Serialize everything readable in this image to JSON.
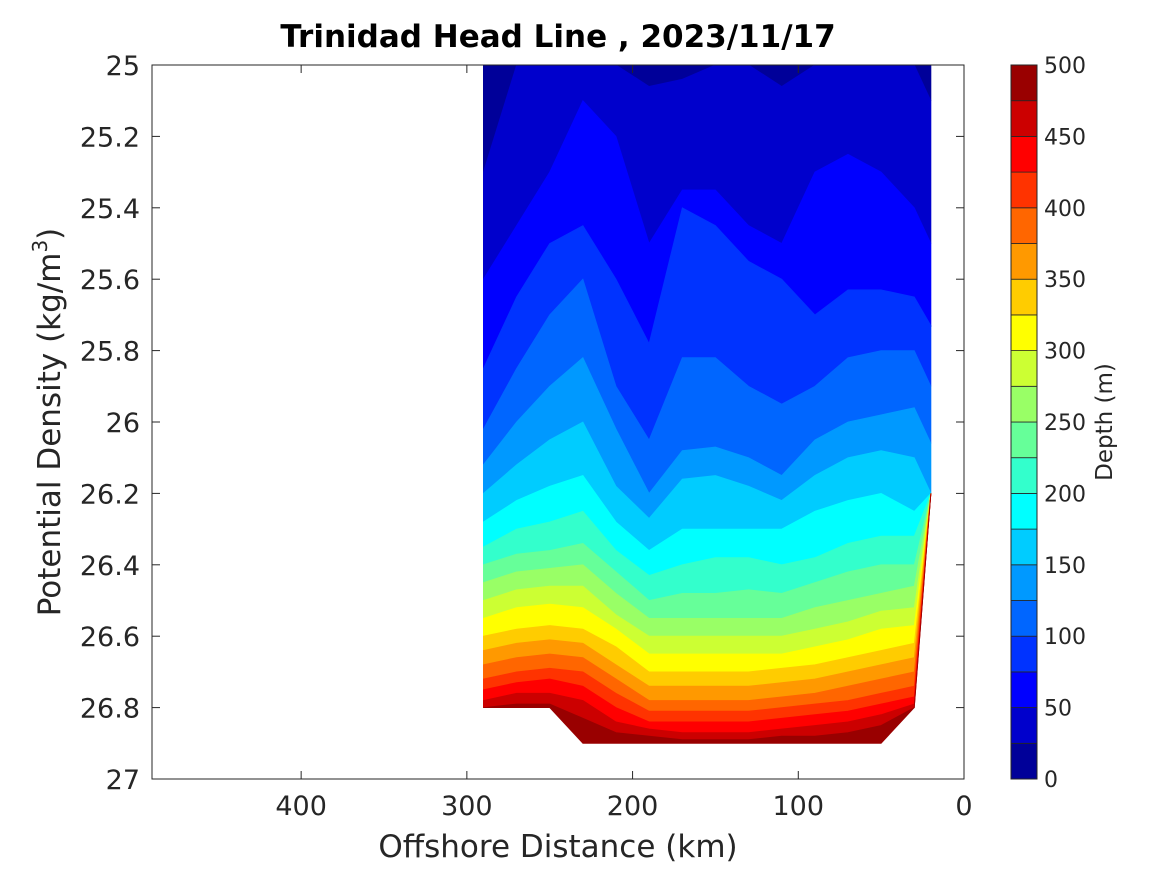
{
  "chart_data": {
    "type": "contour",
    "title": "Trinidad Head Line , 2023/11/17",
    "xlabel": "Offshore Distance (km)",
    "ylabel": "Potential Density (kg/m",
    "ylabel_superscript": "3",
    "ylabel_suffix": ")",
    "xlim": [
      490,
      0
    ],
    "ylim": [
      25,
      27
    ],
    "y_reversed": true,
    "x_reversed": true,
    "x_ticks": [
      "400",
      "300",
      "200",
      "100",
      "0"
    ],
    "x_tick_values": [
      400,
      300,
      200,
      100,
      0
    ],
    "y_ticks": [
      "25",
      "25.2",
      "25.4",
      "25.6",
      "25.8",
      "26",
      "26.2",
      "26.4",
      "26.6",
      "26.8",
      "27"
    ],
    "y_tick_values": [
      25,
      25.2,
      25.4,
      25.6,
      25.8,
      26,
      26.2,
      26.4,
      26.6,
      26.8,
      27
    ],
    "colorbar": {
      "label": "Depth (m)",
      "range": [
        0,
        500
      ],
      "step": 25,
      "tick_labels": [
        "0",
        "50",
        "100",
        "150",
        "200",
        "250",
        "300",
        "350",
        "400",
        "450",
        "500"
      ],
      "tick_values": [
        0,
        50,
        100,
        150,
        200,
        250,
        300,
        350,
        400,
        450,
        500
      ],
      "colormap": "jet"
    },
    "stations_km": [
      290,
      270,
      250,
      230,
      210,
      190,
      170,
      150,
      130,
      110,
      90,
      70,
      50,
      30,
      20
    ],
    "data_bottom_density": [
      26.8,
      26.8,
      26.8,
      26.9,
      26.9,
      26.9,
      26.9,
      26.9,
      26.9,
      26.9,
      26.9,
      26.9,
      26.9,
      26.8,
      26.2
    ],
    "depth_contours": [
      {
        "depth_m": 25,
        "density": [
          25.3,
          25.0,
          25.0,
          25.0,
          25.0,
          25.06,
          25.04,
          25.0,
          25.0,
          25.06,
          25.0,
          25.0,
          25.0,
          25.0,
          25.1
        ]
      },
      {
        "depth_m": 50,
        "density": [
          25.6,
          25.45,
          25.3,
          25.1,
          25.2,
          25.5,
          25.35,
          25.35,
          25.45,
          25.5,
          25.3,
          25.25,
          25.3,
          25.4,
          25.5
        ]
      },
      {
        "depth_m": 75,
        "density": [
          25.85,
          25.65,
          25.5,
          25.45,
          25.6,
          25.78,
          25.4,
          25.45,
          25.55,
          25.6,
          25.7,
          25.63,
          25.63,
          25.65,
          25.73
        ]
      },
      {
        "depth_m": 100,
        "density": [
          26.02,
          25.85,
          25.7,
          25.6,
          25.9,
          26.05,
          25.82,
          25.82,
          25.9,
          25.95,
          25.9,
          25.82,
          25.8,
          25.8,
          25.9
        ]
      },
      {
        "depth_m": 125,
        "density": [
          26.12,
          26.0,
          25.9,
          25.82,
          26.02,
          26.2,
          26.08,
          26.07,
          26.1,
          26.15,
          26.05,
          26.0,
          25.98,
          25.96,
          26.06
        ]
      },
      {
        "depth_m": 150,
        "density": [
          26.2,
          26.12,
          26.05,
          26.0,
          26.18,
          26.27,
          26.16,
          26.15,
          26.18,
          26.22,
          26.15,
          26.1,
          26.08,
          26.1,
          26.2
        ]
      },
      {
        "depth_m": 175,
        "density": [
          26.28,
          26.22,
          26.18,
          26.15,
          26.28,
          26.36,
          26.3,
          26.3,
          26.3,
          26.3,
          26.25,
          26.22,
          26.2,
          26.25,
          26.3
        ]
      },
      {
        "depth_m": 200,
        "density": [
          26.35,
          26.3,
          26.28,
          26.25,
          26.36,
          26.43,
          26.4,
          26.38,
          26.38,
          26.4,
          26.38,
          26.34,
          26.32,
          26.32,
          26.32
        ]
      },
      {
        "depth_m": 225,
        "density": [
          26.4,
          26.37,
          26.36,
          26.34,
          26.42,
          26.5,
          26.48,
          26.48,
          26.47,
          26.48,
          26.45,
          26.42,
          26.4,
          26.4,
          26.4
        ]
      },
      {
        "depth_m": 250,
        "density": [
          26.45,
          26.42,
          26.41,
          26.4,
          26.48,
          26.55,
          26.55,
          26.55,
          26.55,
          26.55,
          26.52,
          26.5,
          26.48,
          26.46,
          26.46
        ]
      },
      {
        "depth_m": 275,
        "density": [
          26.5,
          26.47,
          26.46,
          26.46,
          26.54,
          26.6,
          26.6,
          26.6,
          26.6,
          26.6,
          26.58,
          26.56,
          26.53,
          26.52,
          26.52
        ]
      },
      {
        "depth_m": 300,
        "density": [
          26.55,
          26.52,
          26.51,
          26.52,
          26.58,
          26.65,
          26.65,
          26.65,
          26.65,
          26.65,
          26.63,
          26.61,
          26.58,
          26.57,
          26.57
        ]
      },
      {
        "depth_m": 325,
        "density": [
          26.6,
          26.58,
          26.57,
          26.58,
          26.63,
          26.7,
          26.7,
          26.7,
          26.7,
          26.69,
          26.68,
          26.66,
          26.64,
          26.62,
          26.62
        ]
      },
      {
        "depth_m": 350,
        "density": [
          26.64,
          26.62,
          26.61,
          26.62,
          26.68,
          26.74,
          26.74,
          26.74,
          26.74,
          26.73,
          26.72,
          26.7,
          26.68,
          26.66,
          26.66
        ]
      },
      {
        "depth_m": 375,
        "density": [
          26.68,
          26.66,
          26.65,
          26.66,
          26.72,
          26.78,
          26.78,
          26.78,
          26.78,
          26.77,
          26.76,
          26.74,
          26.72,
          26.7,
          26.7
        ]
      },
      {
        "depth_m": 400,
        "density": [
          26.72,
          26.7,
          26.69,
          26.7,
          26.76,
          26.81,
          26.81,
          26.81,
          26.81,
          26.8,
          26.79,
          26.78,
          26.76,
          26.74,
          26.74
        ]
      },
      {
        "depth_m": 425,
        "density": [
          26.75,
          26.73,
          26.72,
          26.74,
          26.8,
          26.84,
          26.84,
          26.84,
          26.84,
          26.83,
          26.82,
          26.81,
          26.79,
          26.77,
          26.77
        ]
      },
      {
        "depth_m": 450,
        "density": [
          26.78,
          26.76,
          26.76,
          26.78,
          26.84,
          26.86,
          26.87,
          26.87,
          26.87,
          26.86,
          26.85,
          26.84,
          26.82,
          26.79,
          26.79
        ]
      },
      {
        "depth_m": 475,
        "density": [
          26.8,
          26.79,
          26.79,
          26.83,
          26.87,
          26.88,
          26.89,
          26.89,
          26.89,
          26.88,
          26.88,
          26.87,
          26.85,
          26.8,
          26.8
        ]
      }
    ]
  }
}
